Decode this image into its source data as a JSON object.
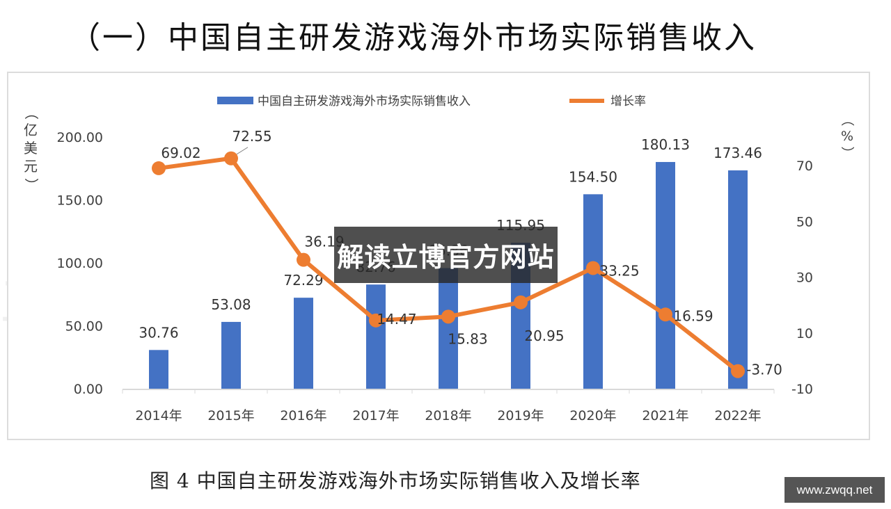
{
  "page": {
    "title": "（一）中国自主研发游戏海外市场实际销售收入",
    "caption": "图 4 中国自主研发游戏海外市场实际销售收入及增长率",
    "overlay_banner": "解读立博官方网站",
    "site_badge": "www.zwqq.net",
    "background_watermark_left": "工委",
    "background_watermark_right": "游戏"
  },
  "colors": {
    "bar": "#4472C4",
    "line": "#ED7D31",
    "axis": "#d9d9d9",
    "text": "#404040"
  },
  "chart_data": {
    "type": "bar+line",
    "title": "中国自主研发游戏海外市场实际销售收入",
    "categories": [
      "2014年",
      "2015年",
      "2016年",
      "2017年",
      "2018年",
      "2019年",
      "2020年",
      "2021年",
      "2022年"
    ],
    "series": [
      {
        "name": "中国自主研发游戏海外市场实际销售收入",
        "type": "bar",
        "axis": "left",
        "values": [
          30.76,
          53.08,
          72.29,
          82.76,
          95.86,
          115.95,
          154.5,
          180.13,
          173.46
        ],
        "labels": [
          "30.76",
          "53.08",
          "72.29",
          "82.76",
          "95.86",
          "115.95",
          "154.50",
          "180.13",
          "173.46"
        ]
      },
      {
        "name": "增长率",
        "type": "line",
        "axis": "right",
        "values": [
          69.02,
          72.55,
          36.19,
          14.47,
          15.83,
          20.95,
          33.25,
          16.59,
          -3.7
        ],
        "labels": [
          "69.02",
          "72.55",
          "36.19",
          "14.47",
          "15.83",
          "20.95",
          "33.25",
          "16.59",
          "-3.70"
        ]
      }
    ],
    "ylabel": "（亿美元）",
    "ylabel_right": "（%）",
    "xlabel": "",
    "ylim": [
      0,
      200
    ],
    "ylim_right": [
      -10,
      70
    ],
    "yticks": [
      "0.00",
      "50.00",
      "100.00",
      "150.00",
      "200.00"
    ],
    "yticks_right": [
      "-10",
      "10",
      "30",
      "50",
      "70"
    ],
    "legend_position": "top",
    "grid": false
  }
}
